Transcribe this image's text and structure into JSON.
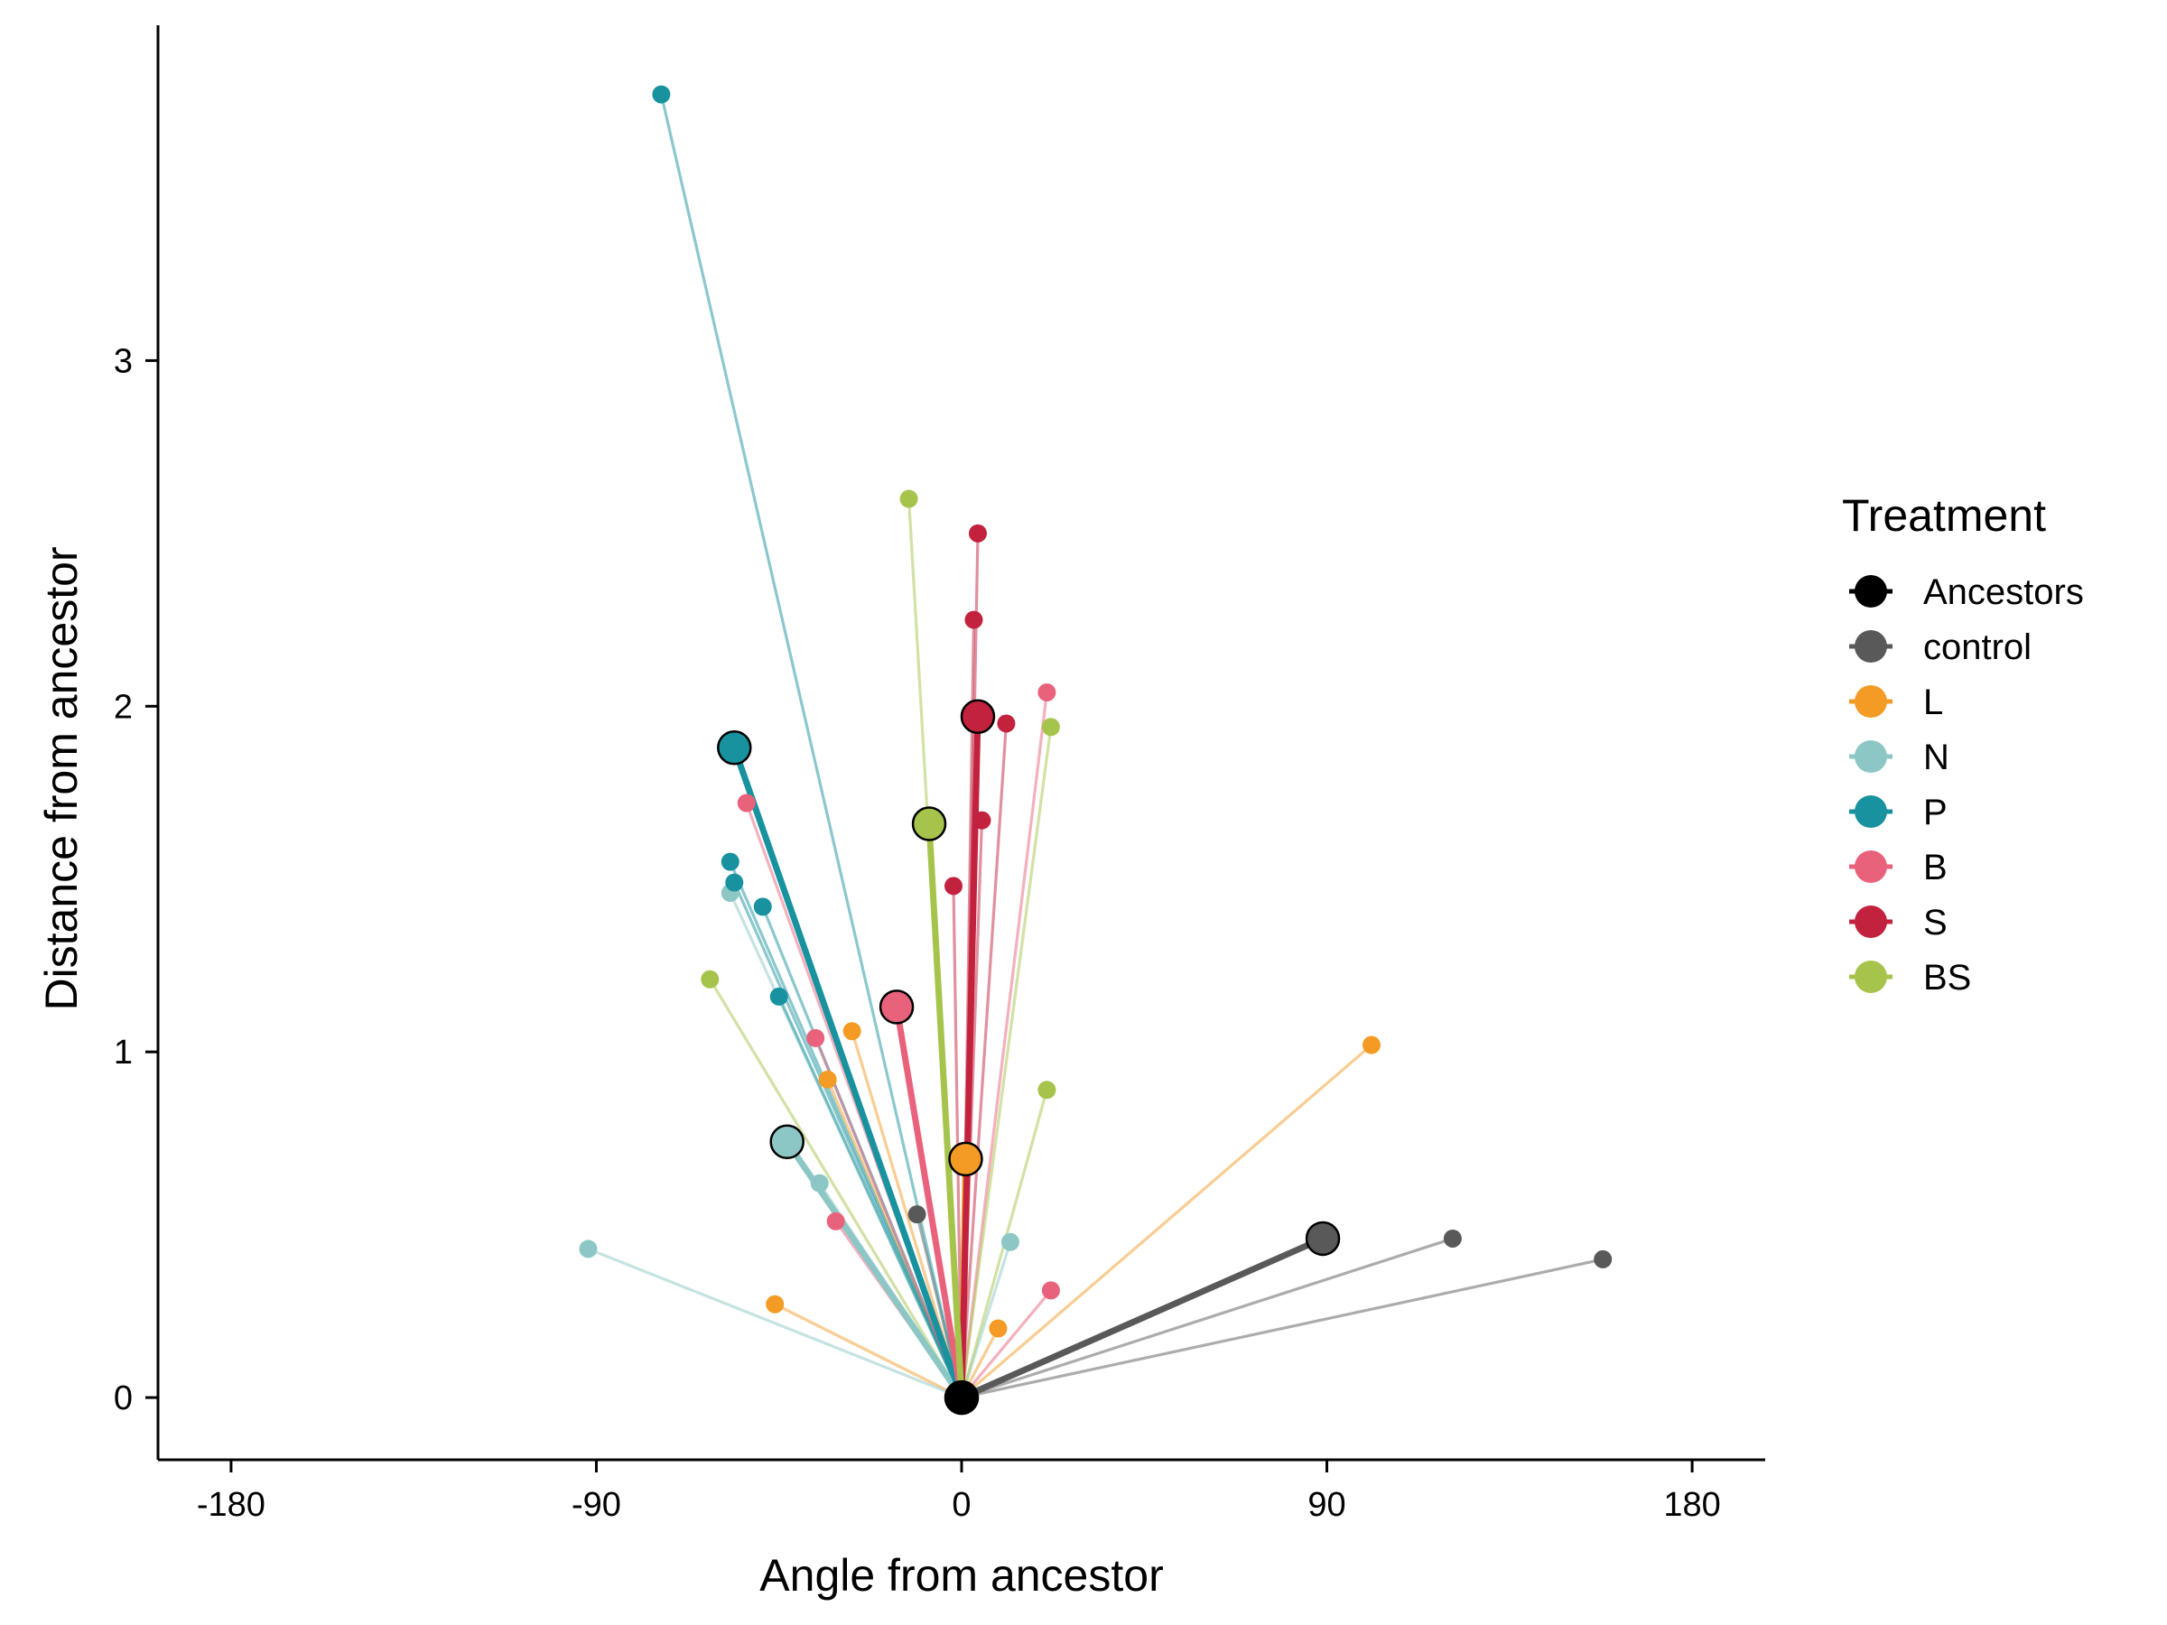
{
  "chart_data": {
    "type": "scatter",
    "xlabel": "Angle from ancestor",
    "ylabel": "Distance from ancestor",
    "xlim": [
      -198,
      198
    ],
    "ylim": [
      -0.18,
      3.97
    ],
    "xticks": [
      -180,
      -90,
      0,
      90,
      180
    ],
    "yticks": [
      0,
      1,
      2,
      3
    ],
    "xtick_labels": [
      "-180",
      "-90",
      "0",
      "90",
      "180"
    ],
    "ytick_labels": [
      "0",
      "1",
      "2",
      "3"
    ],
    "grid": false,
    "origin": {
      "x": 0,
      "y": 0
    },
    "legend": {
      "title": "Treatment",
      "position": "right",
      "entries": [
        {
          "label": "Ancestors",
          "color": "#000000"
        },
        {
          "label": "control",
          "color": "#595959"
        },
        {
          "label": "L",
          "color": "#F39B25"
        },
        {
          "label": "N",
          "color": "#8CC7C6"
        },
        {
          "label": "P",
          "color": "#17929E"
        },
        {
          "label": "B",
          "color": "#E9627B"
        },
        {
          "label": "S",
          "color": "#C2223E"
        },
        {
          "label": "BS",
          "color": "#A6C44B"
        }
      ]
    },
    "series": [
      {
        "name": "Ancestors",
        "color": "#000000",
        "mean": {
          "x": 0,
          "y": 0
        },
        "points": []
      },
      {
        "name": "control",
        "color": "#595959",
        "mean": {
          "x": 89,
          "y": 0.46
        },
        "points": [
          {
            "x": 121,
            "y": 0.46
          },
          {
            "x": 158,
            "y": 0.4
          },
          {
            "x": -11,
            "y": 0.53
          }
        ]
      },
      {
        "name": "L",
        "color": "#F39B25",
        "mean": {
          "x": 1,
          "y": 0.69
        },
        "points": [
          {
            "x": 101,
            "y": 1.02
          },
          {
            "x": -27,
            "y": 1.06
          },
          {
            "x": -33,
            "y": 0.92
          },
          {
            "x": -46,
            "y": 0.27
          },
          {
            "x": 9,
            "y": 0.2
          }
        ]
      },
      {
        "name": "N",
        "color": "#8CC7C6",
        "mean": {
          "x": -43,
          "y": 0.74
        },
        "points": [
          {
            "x": -92,
            "y": 0.43
          },
          {
            "x": -57,
            "y": 1.46
          },
          {
            "x": -35,
            "y": 0.62
          },
          {
            "x": 12,
            "y": 0.45
          }
        ]
      },
      {
        "name": "P",
        "color": "#17929E",
        "mean": {
          "x": -56,
          "y": 1.88
        },
        "points": [
          {
            "x": -74,
            "y": 3.77
          },
          {
            "x": -57,
            "y": 1.55
          },
          {
            "x": -56,
            "y": 1.49
          },
          {
            "x": -49,
            "y": 1.42
          },
          {
            "x": -45,
            "y": 1.16
          }
        ]
      },
      {
        "name": "B",
        "color": "#E9627B",
        "mean": {
          "x": -16,
          "y": 1.13
        },
        "points": [
          {
            "x": -53,
            "y": 1.72
          },
          {
            "x": -36,
            "y": 1.04
          },
          {
            "x": -31,
            "y": 0.51
          },
          {
            "x": 21,
            "y": 2.04
          },
          {
            "x": 22,
            "y": 0.31
          }
        ]
      },
      {
        "name": "S",
        "color": "#C2223E",
        "mean": {
          "x": 4,
          "y": 1.97
        },
        "points": [
          {
            "x": 4,
            "y": 2.5
          },
          {
            "x": 3,
            "y": 2.25
          },
          {
            "x": 11,
            "y": 1.95
          },
          {
            "x": 5,
            "y": 1.67
          },
          {
            "x": -2,
            "y": 1.48
          }
        ]
      },
      {
        "name": "BS",
        "color": "#A6C44B",
        "mean": {
          "x": -8,
          "y": 1.66
        },
        "points": [
          {
            "x": -13,
            "y": 2.6
          },
          {
            "x": 22,
            "y": 1.94
          },
          {
            "x": -62,
            "y": 1.21
          },
          {
            "x": 21,
            "y": 0.89
          }
        ]
      }
    ]
  }
}
